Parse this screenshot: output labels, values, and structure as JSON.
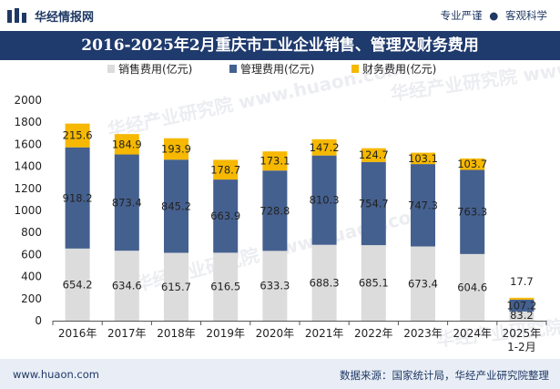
{
  "header": {
    "logo_text": "华经情报网",
    "slogan_left": "专业严谨",
    "slogan_sep": "●",
    "slogan_right": "客观科学"
  },
  "footer": {
    "url": "www.huaon.com",
    "source": "数据来源：国家统计局，华经产业研究院整理"
  },
  "colors": {
    "sales": "#dcdcdc",
    "management": "#44608f",
    "finance": "#f6b800",
    "title_bar": "#1f3a6d"
  },
  "chart_data": {
    "type": "bar",
    "stacked": true,
    "title": "2016-2025年2月重庆市工业企业销售、管理及财务费用",
    "categories": [
      "2016年",
      "2017年",
      "2018年",
      "2019年",
      "2020年",
      "2021年",
      "2022年",
      "2023年",
      "2024年",
      "2025年\n1-2月"
    ],
    "series": [
      {
        "name": "销售费用(亿元)",
        "values": [
          654.2,
          634.6,
          615.7,
          616.5,
          633.3,
          688.3,
          685.1,
          673.4,
          604.6,
          83.2
        ]
      },
      {
        "name": "管理费用(亿元)",
        "values": [
          918.2,
          873.4,
          845.2,
          663.9,
          728.8,
          810.3,
          754.7,
          747.3,
          763.3,
          107.2
        ]
      },
      {
        "name": "财务费用(亿元)",
        "values": [
          215.6,
          184.9,
          193.9,
          178.7,
          173.1,
          147.2,
          124.7,
          103.1,
          103.7,
          17.7
        ]
      }
    ],
    "ylim": [
      0,
      2000
    ],
    "yticks": [
      0,
      200,
      400,
      600,
      800,
      1000,
      1200,
      1400,
      1600,
      1800,
      2000
    ],
    "legend_position": "top-center",
    "watermark": "华经产业研究院 www.huaon.com"
  }
}
